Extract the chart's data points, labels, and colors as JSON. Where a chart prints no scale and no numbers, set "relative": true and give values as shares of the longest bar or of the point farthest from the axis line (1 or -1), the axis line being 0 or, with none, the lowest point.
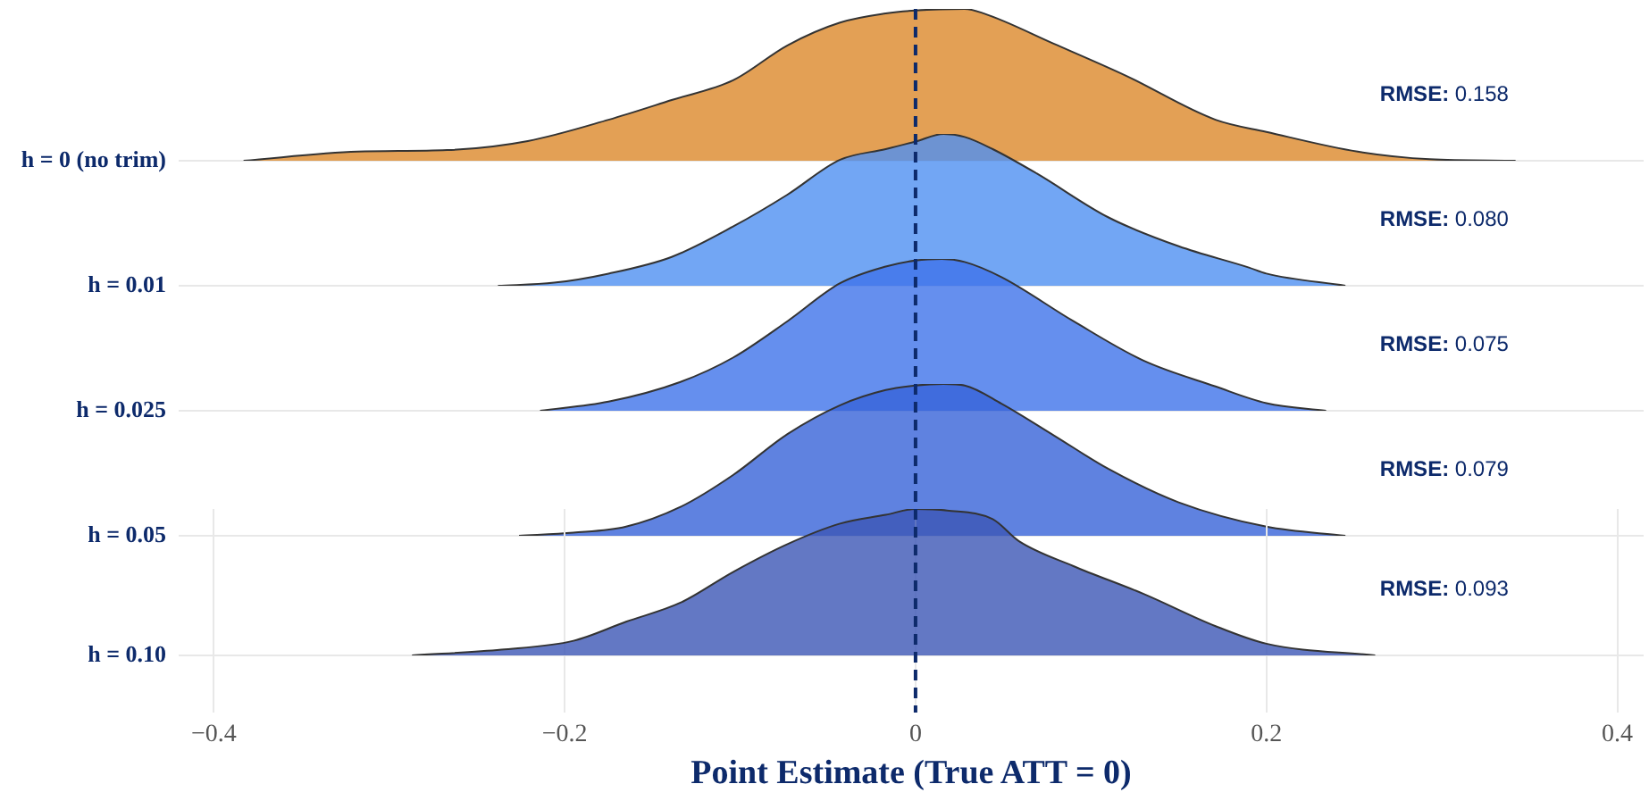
{
  "chart_data": [
    {
      "type": "area",
      "relative": true,
      "line_style": "solid",
      "ylabel": "h = 0 (no trim)",
      "xlim": [
        -0.42,
        0.415
      ],
      "tick_labels": false,
      "grid": true,
      "marker": "none",
      "annotations": [
        "RMSE: 0.158"
      ],
      "series": [
        {
          "color": "#e3a055",
          "x": [
            -0.383,
            -0.318,
            -0.267,
            -0.221,
            -0.175,
            -0.139,
            -0.104,
            -0.073,
            -0.043,
            -0.017,
            0,
            0.028,
            0.039,
            0.079,
            0.12,
            0.171,
            0.2,
            0.252,
            0.293,
            0.342
          ],
          "values": [
            0,
            0.06,
            0.07,
            0.13,
            0.27,
            0.4,
            0.53,
            0.76,
            0.91,
            0.97,
            0.99,
            1,
            0.97,
            0.77,
            0.56,
            0.27,
            0.19,
            0.06,
            0.01,
            0
          ]
        }
      ]
    },
    {
      "type": "area",
      "relative": true,
      "line_style": "solid",
      "ylabel": "h = 0.01",
      "xlim": [
        -0.42,
        0.415
      ],
      "tick_labels": false,
      "grid": true,
      "marker": "none",
      "annotations": [
        "RMSE: 0.080"
      ],
      "series": [
        {
          "color": "#72a6f4",
          "x": [
            -0.238,
            -0.206,
            -0.175,
            -0.139,
            -0.104,
            -0.073,
            -0.043,
            -0.017,
            0,
            0.016,
            0.028,
            0.044,
            0.069,
            0.11,
            0.15,
            0.19,
            0.2,
            0.245
          ],
          "values": [
            0,
            0.02,
            0.08,
            0.19,
            0.39,
            0.6,
            0.83,
            0.9,
            0.95,
            1,
            0.98,
            0.9,
            0.74,
            0.45,
            0.26,
            0.12,
            0.08,
            0
          ]
        }
      ]
    },
    {
      "type": "area",
      "relative": true,
      "line_style": "solid",
      "ylabel": "h = 0.025",
      "xlim": [
        -0.42,
        0.415
      ],
      "tick_labels": false,
      "grid": true,
      "marker": "none",
      "annotations": [
        "RMSE: 0.075"
      ],
      "series": [
        {
          "color": "#658fee",
          "x": [
            -0.214,
            -0.175,
            -0.134,
            -0.104,
            -0.073,
            -0.043,
            -0.017,
            0,
            0.015,
            0.028,
            0.049,
            0.09,
            0.13,
            0.171,
            0.2,
            0.234
          ],
          "values": [
            0,
            0.06,
            0.19,
            0.35,
            0.59,
            0.84,
            0.95,
            0.99,
            1,
            0.98,
            0.88,
            0.59,
            0.33,
            0.16,
            0.05,
            0
          ]
        }
      ]
    },
    {
      "type": "area",
      "relative": true,
      "line_style": "solid",
      "ylabel": "h = 0.05",
      "xlim": [
        -0.42,
        0.415
      ],
      "tick_labels": false,
      "grid": true,
      "marker": "none",
      "annotations": [
        "RMSE: 0.079"
      ],
      "series": [
        {
          "color": "#5f82e0",
          "x": [
            -0.226,
            -0.195,
            -0.165,
            -0.134,
            -0.104,
            -0.073,
            -0.043,
            -0.017,
            0,
            0.016,
            0.028,
            0.049,
            0.079,
            0.11,
            0.15,
            0.2,
            0.245
          ],
          "values": [
            0,
            0.02,
            0.06,
            0.19,
            0.4,
            0.67,
            0.86,
            0.96,
            0.99,
            1,
            0.99,
            0.87,
            0.66,
            0.44,
            0.22,
            0.06,
            0
          ]
        }
      ]
    },
    {
      "type": "area",
      "relative": true,
      "line_style": "solid",
      "ylabel": "h = 0.10",
      "xlabel": "Point Estimate (True ATT = 0)",
      "xlim": [
        -0.42,
        0.415
      ],
      "xticks": [
        {
          "value": -0.4,
          "label": "−0.4"
        },
        {
          "value": -0.2,
          "label": "−0.2"
        },
        0.0,
        0.2,
        0.4
      ],
      "tick_labels": "x",
      "grid": true,
      "marker": "none",
      "annotations": [
        "RMSE: 0.093"
      ],
      "ref_lines": [
        {
          "axis": "x",
          "value": 0,
          "color": "#0d2a6b",
          "line_style": "dashed"
        }
      ],
      "series": [
        {
          "color": "#6378c4",
          "x": [
            -0.287,
            -0.236,
            -0.195,
            -0.165,
            -0.134,
            -0.104,
            -0.073,
            -0.043,
            -0.017,
            0,
            0.018,
            0.044,
            0.059,
            0.09,
            0.13,
            0.171,
            0.2,
            0.262
          ],
          "values": [
            0,
            0.04,
            0.1,
            0.23,
            0.36,
            0.57,
            0.76,
            0.9,
            0.96,
            1,
            0.99,
            0.93,
            0.78,
            0.61,
            0.42,
            0.2,
            0.08,
            0
          ]
        }
      ]
    }
  ]
}
